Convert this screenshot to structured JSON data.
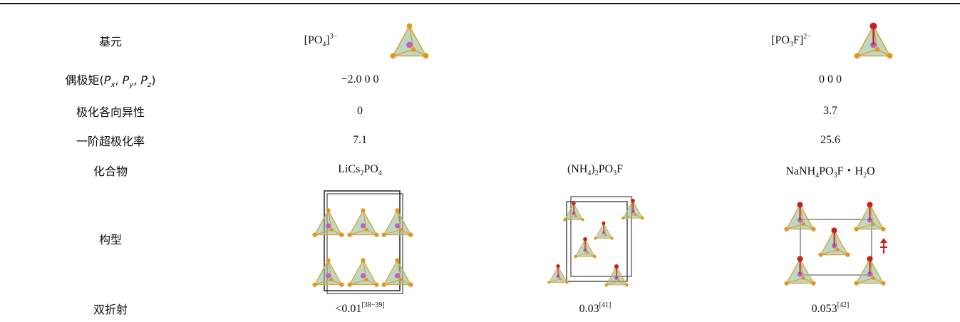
{
  "table": {
    "rows": [
      {
        "label": [
          {
            "text": "基元"
          }
        ],
        "cells": [
          [
            {
              "text": "[PO"
            },
            {
              "text": "4",
              "style": "sub"
            },
            {
              "text": "]"
            },
            {
              "text": "3−",
              "style": "sup"
            }
          ],
          null,
          [
            {
              "text": "[PO"
            },
            {
              "text": "3",
              "style": "sub"
            },
            {
              "text": "F]"
            },
            {
              "text": "2−",
              "style": "sup"
            }
          ]
        ]
      },
      {
        "label": [
          {
            "text": "偶极矩("
          },
          {
            "text": "P",
            "style": "italic"
          },
          {
            "text": "x",
            "style": "sub italic"
          },
          {
            "text": ", "
          },
          {
            "text": "P",
            "style": "italic"
          },
          {
            "text": "y",
            "style": "sub italic"
          },
          {
            "text": ", "
          },
          {
            "text": "P",
            "style": "italic"
          },
          {
            "text": "z",
            "style": "sub italic"
          },
          {
            "text": ")"
          }
        ],
        "cells": [
          [
            {
              "text": "−2.0 0 0"
            }
          ],
          null,
          [
            {
              "text": "0 0 0"
            }
          ]
        ]
      },
      {
        "label": [
          {
            "text": "极化各向异性"
          }
        ],
        "cells": [
          [
            {
              "text": "0"
            }
          ],
          null,
          [
            {
              "text": "3.7"
            }
          ]
        ]
      },
      {
        "label": [
          {
            "text": "一阶超极化率"
          }
        ],
        "cells": [
          [
            {
              "text": "7.1"
            }
          ],
          null,
          [
            {
              "text": "25.6"
            }
          ]
        ]
      },
      {
        "label": [
          {
            "text": "化合物"
          }
        ],
        "cells": [
          [
            {
              "text": "LiCs"
            },
            {
              "text": "2",
              "style": "sub"
            },
            {
              "text": "PO"
            },
            {
              "text": "4",
              "style": "sub"
            }
          ],
          [
            {
              "text": "(NH"
            },
            {
              "text": "4",
              "style": "sub"
            },
            {
              "text": ")"
            },
            {
              "text": "2",
              "style": "sub"
            },
            {
              "text": "PO"
            },
            {
              "text": "3",
              "style": "sub"
            },
            {
              "text": "F"
            }
          ],
          [
            {
              "text": "NaNH"
            },
            {
              "text": "4",
              "style": "sub"
            },
            {
              "text": "PO"
            },
            {
              "text": "3",
              "style": "sub"
            },
            {
              "text": "F・H"
            },
            {
              "text": "2",
              "style": "sub"
            },
            {
              "text": "O"
            }
          ]
        ]
      },
      {
        "label": [
          {
            "text": "构型"
          }
        ],
        "cells": [
          null,
          null,
          null
        ]
      },
      {
        "label": [
          {
            "text": "双折射"
          }
        ],
        "cells": [
          [
            {
              "text": "<0.01"
            },
            {
              "text": "[38−39]",
              "style": "sup"
            }
          ],
          [
            {
              "text": "0.03"
            },
            {
              "text": "[41]",
              "style": "sup"
            }
          ],
          [
            {
              "text": "0.053"
            },
            {
              "text": "[42]",
              "style": "sup"
            }
          ]
        ]
      }
    ]
  }
}
